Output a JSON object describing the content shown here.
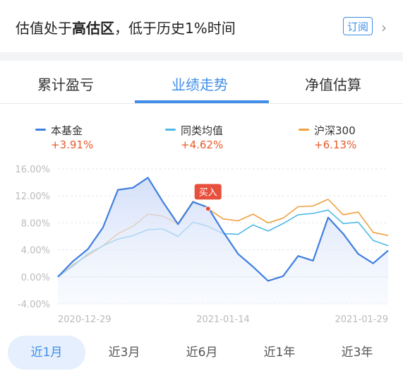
{
  "valuation": {
    "prefix": "估值处于",
    "level": "高估区",
    "suffix": "，低于历史1%时间",
    "subscribe_label": "订阅"
  },
  "tabs": [
    {
      "label": "累计盈亏",
      "active": false
    },
    {
      "label": "业绩走势",
      "active": true
    },
    {
      "label": "净值估算",
      "active": false
    }
  ],
  "legend": [
    {
      "name": "本基金",
      "value": "+3.91%",
      "color": "#3f7fe0"
    },
    {
      "name": "同类均值",
      "value": "+4.62%",
      "color": "#4fb8e8"
    },
    {
      "name": "沪深300",
      "value": "+6.13%",
      "color": "#f0a040"
    }
  ],
  "buy_marker_label": "买入",
  "time_ranges": [
    {
      "label": "近1月",
      "active": true
    },
    {
      "label": "近3月",
      "active": false
    },
    {
      "label": "近6月",
      "active": false
    },
    {
      "label": "近1年",
      "active": false
    },
    {
      "label": "近3年",
      "active": false
    }
  ],
  "chart_data": {
    "type": "line",
    "x": [
      "2020-12-29",
      "2020-12-30",
      "2020-12-31",
      "2021-01-04",
      "2021-01-05",
      "2021-01-06",
      "2021-01-07",
      "2021-01-08",
      "2021-01-11",
      "2021-01-12",
      "2021-01-13",
      "2021-01-14",
      "2021-01-15",
      "2021-01-18",
      "2021-01-19",
      "2021-01-20",
      "2021-01-21",
      "2021-01-22",
      "2021-01-25",
      "2021-01-26",
      "2021-01-27",
      "2021-01-28",
      "2021-01-29"
    ],
    "x_tick_labels": [
      "2020-12-29",
      "2021-01-14",
      "2021-01-29"
    ],
    "x_tick_index": [
      0,
      11,
      22
    ],
    "y_ticks": [
      16,
      12,
      8,
      4,
      0,
      -4
    ],
    "y_tick_labels": [
      "16.00%",
      "12.00%",
      "8.00%",
      "4.00%",
      "0.00%",
      "-4.00%"
    ],
    "ylim": [
      -4,
      16
    ],
    "grid": true,
    "series": [
      {
        "name": "本基金",
        "color": "#3f7fe0",
        "fill": true,
        "values": [
          0,
          2.3,
          4.1,
          7.3,
          12.9,
          13.2,
          14.7,
          11.1,
          7.8,
          11.1,
          10.3,
          6.7,
          3.4,
          1.5,
          -0.6,
          0.1,
          3.1,
          2.4,
          8.8,
          6.4,
          3.4,
          2.0,
          3.91
        ]
      },
      {
        "name": "同类均值",
        "color": "#4fb8e8",
        "fill": false,
        "values": [
          0,
          1.6,
          3.4,
          4.6,
          5.6,
          6.1,
          7.0,
          7.1,
          6.0,
          8.1,
          7.5,
          6.4,
          6.3,
          7.7,
          6.8,
          7.9,
          9.2,
          9.4,
          9.9,
          7.9,
          8.1,
          5.4,
          4.62
        ]
      },
      {
        "name": "沪深300",
        "color": "#f0a040",
        "fill": false,
        "values": [
          0,
          1.8,
          3.2,
          4.6,
          6.4,
          7.5,
          9.3,
          9.0,
          7.9,
          11.2,
          10.1,
          8.6,
          8.3,
          9.3,
          8.0,
          8.7,
          10.4,
          10.5,
          11.5,
          9.2,
          9.6,
          6.6,
          6.13
        ]
      }
    ],
    "buy_marker": {
      "x_index": 10,
      "y": 10.1,
      "label": "买入"
    }
  }
}
